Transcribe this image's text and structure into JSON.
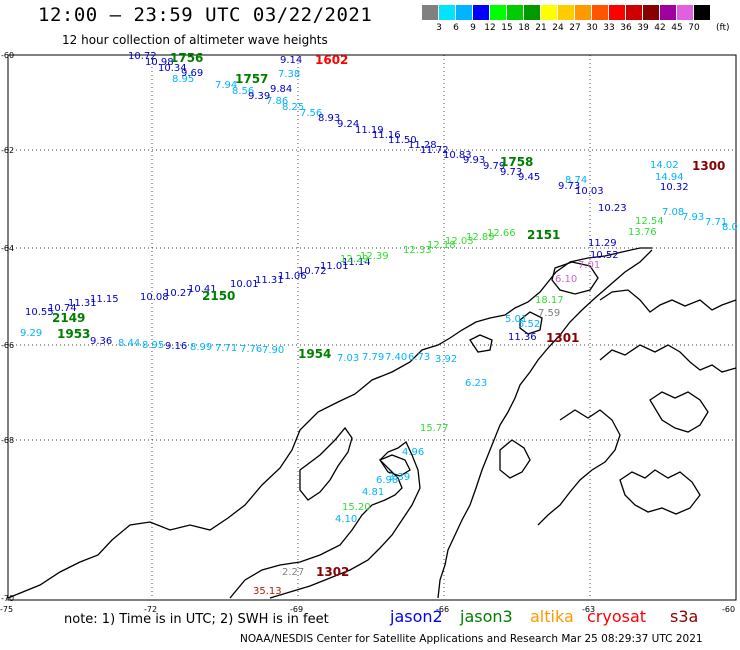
{
  "title": "12:00 – 23:59 UTC 03/22/2021",
  "subtitle": "12 hour collection of altimeter wave heights",
  "colorbar": {
    "ticks": [
      "3",
      "6",
      "9",
      "12",
      "15",
      "18",
      "21",
      "24",
      "27",
      "30",
      "33",
      "36",
      "39",
      "42",
      "45",
      "70"
    ],
    "unit": "(ft)",
    "colors": [
      "#808080",
      "#00e5ff",
      "#00b4ff",
      "#0000ff",
      "#00ff00",
      "#00cc00",
      "#009900",
      "#ffff00",
      "#ffcc00",
      "#ff9900",
      "#ff5500",
      "#ff0000",
      "#cc0000",
      "#880000",
      "#a000a0",
      "#e060e0",
      "#000000"
    ]
  },
  "axes": {
    "lat_labels": [
      "-60",
      "-62",
      "-64",
      "-66",
      "-68",
      "-70"
    ],
    "lon_labels": [
      "-75",
      "-72",
      "-69",
      "-66",
      "-63",
      "-60"
    ]
  },
  "tracks": {
    "cyan": [
      {
        "t": "7.38"
      },
      {
        "t": "8.95"
      },
      {
        "t": "7.94"
      },
      {
        "t": "8.56"
      },
      {
        "t": "7.86"
      },
      {
        "t": "8.25"
      },
      {
        "t": "7.56"
      },
      {
        "t": "14.02"
      },
      {
        "t": "14.94"
      },
      {
        "t": "8.74"
      },
      {
        "t": "7.08"
      },
      {
        "t": "7.93"
      },
      {
        "t": "7.71"
      },
      {
        "t": "8.0"
      },
      {
        "t": "9.29"
      },
      {
        "t": "8.44"
      },
      {
        "t": "8.95"
      },
      {
        "t": "8.99"
      },
      {
        "t": "7.71"
      },
      {
        "t": "7.76"
      },
      {
        "t": "7.90"
      },
      {
        "t": "7.03"
      },
      {
        "t": "7.79"
      },
      {
        "t": "7.40"
      },
      {
        "t": "6.73"
      },
      {
        "t": "3.92"
      },
      {
        "t": "5.52"
      },
      {
        "t": "6.23"
      },
      {
        "t": "4.96"
      },
      {
        "t": "4.81"
      },
      {
        "t": "4.10"
      },
      {
        "t": "3.39"
      },
      {
        "t": "6.98"
      },
      {
        "t": "5.01"
      }
    ],
    "blue": [
      {
        "t": "10.72"
      },
      {
        "t": "10.98"
      },
      {
        "t": "10.34"
      },
      {
        "t": "9.69"
      },
      {
        "t": "9.14"
      },
      {
        "t": "9.39"
      },
      {
        "t": "9.84"
      },
      {
        "t": "8.93"
      },
      {
        "t": "9.24"
      },
      {
        "t": "11.19"
      },
      {
        "t": "11.16"
      },
      {
        "t": "11.50"
      },
      {
        "t": "11.28"
      },
      {
        "t": "11.72"
      },
      {
        "t": "10.83"
      },
      {
        "t": "9.93"
      },
      {
        "t": "9.79"
      },
      {
        "t": "9.73"
      },
      {
        "t": "9.45"
      },
      {
        "t": "9.73"
      },
      {
        "t": "10.03"
      },
      {
        "t": "10.32"
      },
      {
        "t": "10.23"
      },
      {
        "t": "11.29"
      },
      {
        "t": "10.52"
      },
      {
        "t": "10.55"
      },
      {
        "t": "10.74"
      },
      {
        "t": "11.31"
      },
      {
        "t": "11.15"
      },
      {
        "t": "10.08"
      },
      {
        "t": "10.27"
      },
      {
        "t": "10.41"
      },
      {
        "t": "10.01"
      },
      {
        "t": "11.31"
      },
      {
        "t": "11.06"
      },
      {
        "t": "10.72"
      },
      {
        "t": "11.01"
      },
      {
        "t": "11.14"
      },
      {
        "t": "9.36"
      },
      {
        "t": "9.16"
      },
      {
        "t": "11.36"
      }
    ],
    "green_light": [
      {
        "t": "12.33"
      },
      {
        "t": "12.18"
      },
      {
        "t": "12.03"
      },
      {
        "t": "12.89"
      },
      {
        "t": "12.66"
      },
      {
        "t": "12.39"
      },
      {
        "t": "12.29"
      },
      {
        "t": "12.54"
      },
      {
        "t": "13.76"
      },
      {
        "t": "18.17"
      },
      {
        "t": "15.77"
      },
      {
        "t": "15.20"
      }
    ],
    "dark_red": [
      {
        "t": "35.13"
      }
    ],
    "gray": [
      {
        "t": "2.27"
      },
      {
        "t": "7.59"
      }
    ],
    "pink": [
      {
        "t": "6.10"
      },
      {
        "t": "7.01"
      }
    ]
  },
  "time_labels": [
    {
      "t": "1756",
      "c": "#008000"
    },
    {
      "t": "1757",
      "c": "#008000"
    },
    {
      "t": "1602",
      "c": "#ff0000"
    },
    {
      "t": "1758",
      "c": "#008000"
    },
    {
      "t": "1300",
      "c": "#880000"
    },
    {
      "t": "2151",
      "c": "#008000"
    },
    {
      "t": "2150",
      "c": "#008000"
    },
    {
      "t": "2149",
      "c": "#008000"
    },
    {
      "t": "1953",
      "c": "#008000"
    },
    {
      "t": "1954",
      "c": "#008000"
    },
    {
      "t": "1301",
      "c": "#880000"
    },
    {
      "t": "1302",
      "c": "#880000"
    }
  ],
  "footer": {
    "note": "note:  1) Time is in UTC;  2) SWH is in feet",
    "legend": [
      {
        "name": "jason2",
        "color": "#0000ff"
      },
      {
        "name": "jason3",
        "color": "#008000"
      },
      {
        "name": "altika",
        "color": "#ff9900"
      },
      {
        "name": "cryosat",
        "color": "#ff0000"
      },
      {
        "name": "s3a",
        "color": "#880000"
      }
    ],
    "credit": "NOAA/NESDIS Center for Satellite Applications and Research    Mar 25 08:29:37 UTC 2021"
  }
}
